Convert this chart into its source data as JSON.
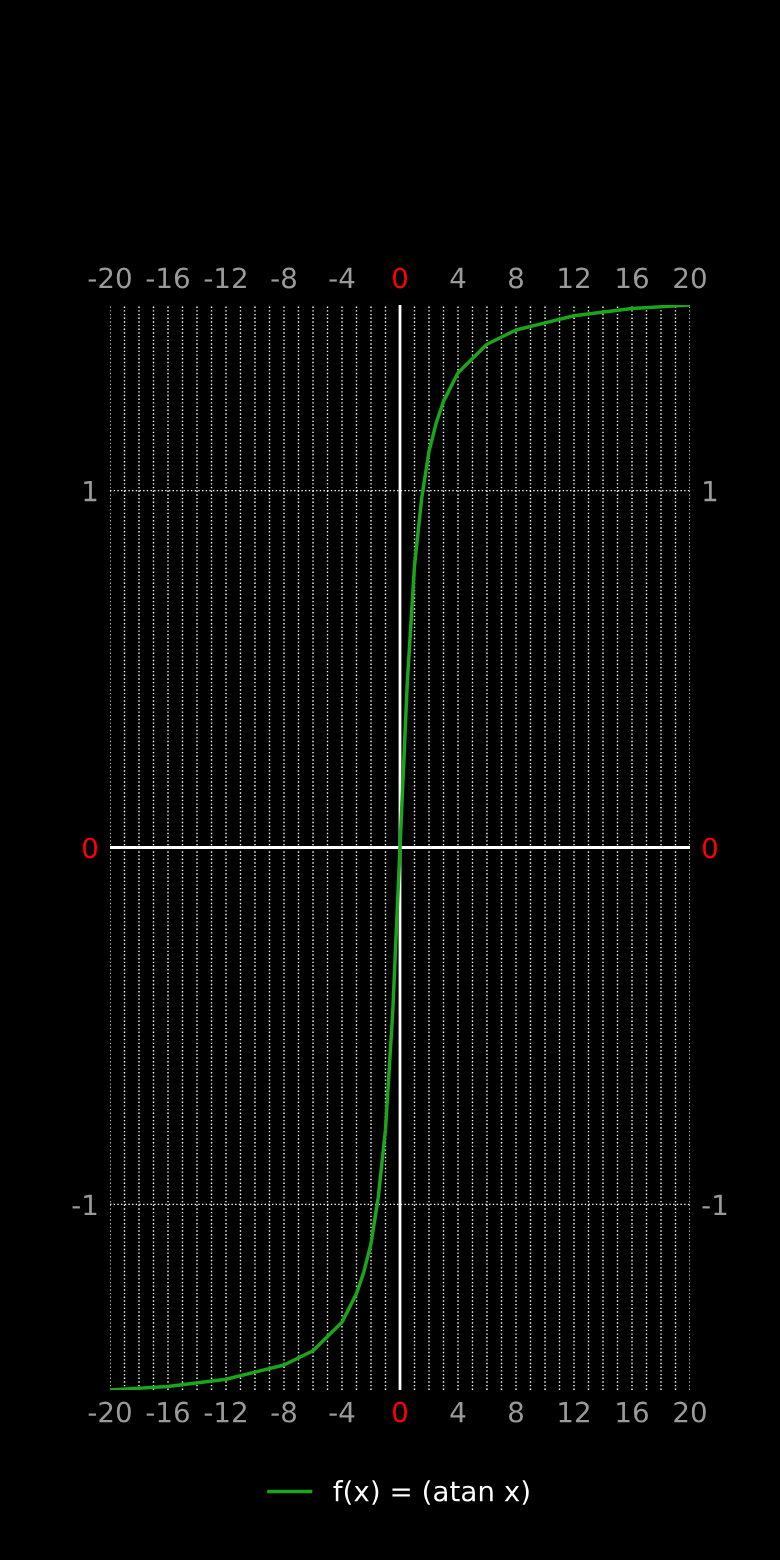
{
  "chart_data": {
    "type": "line",
    "xlim": [
      -20,
      20
    ],
    "ylim": [
      -1.52,
      1.52
    ],
    "x2lim": [
      -20,
      20
    ],
    "y2lim": [
      -1.52,
      1.52
    ],
    "xticks": [
      -20,
      {
        "value": -19,
        "label": null
      },
      {
        "value": -18,
        "label": null
      },
      {
        "value": -17,
        "label": null
      },
      -16,
      {
        "value": -15,
        "label": null
      },
      {
        "value": -14,
        "label": null
      },
      {
        "value": -13,
        "label": null
      },
      -12,
      {
        "value": -11,
        "label": null
      },
      {
        "value": -10,
        "label": null
      },
      {
        "value": -9,
        "label": null
      },
      -8,
      {
        "value": -7,
        "label": null
      },
      {
        "value": -6,
        "label": null
      },
      {
        "value": -5,
        "label": null
      },
      -4,
      {
        "value": -3,
        "label": null
      },
      {
        "value": -2,
        "label": null
      },
      {
        "value": -1,
        "label": null
      },
      0,
      {
        "value": 1,
        "label": null
      },
      {
        "value": 2,
        "label": null
      },
      {
        "value": 3,
        "label": null
      },
      4,
      {
        "value": 5,
        "label": null
      },
      {
        "value": 6,
        "label": null
      },
      {
        "value": 7,
        "label": null
      },
      8,
      {
        "value": 9,
        "label": null
      },
      {
        "value": 10,
        "label": null
      },
      {
        "value": 11,
        "label": null
      },
      12,
      {
        "value": 13,
        "label": null
      },
      {
        "value": 14,
        "label": null
      },
      {
        "value": 15,
        "label": null
      },
      16,
      {
        "value": 17,
        "label": null
      },
      {
        "value": 18,
        "label": null
      },
      {
        "value": 19,
        "label": null
      },
      20
    ],
    "x2ticks": [
      -20,
      -16,
      -12,
      -8,
      -4,
      0,
      4,
      8,
      12,
      16,
      20
    ],
    "yticks": [
      -1,
      0,
      1
    ],
    "y2ticks": [
      -1,
      0,
      1
    ],
    "grid": true,
    "legend": "bottom",
    "series": [
      {
        "name": "f(x) = (atan x)",
        "color": "#1aa51a",
        "x": [
          -20,
          -16,
          -12,
          -10,
          -8,
          -6,
          -5,
          -4,
          -3,
          -2.5,
          -2,
          -1.5,
          -1,
          -0.5,
          0,
          0.5,
          1,
          1.5,
          2,
          2.5,
          3,
          4,
          5,
          6,
          8,
          10,
          12,
          16,
          20
        ],
        "values": [
          -1.52,
          -1.51,
          -1.49,
          -1.47,
          -1.45,
          -1.41,
          -1.37,
          -1.33,
          -1.25,
          -1.19,
          -1.11,
          -0.98,
          -0.79,
          -0.46,
          0,
          0.46,
          0.79,
          0.98,
          1.11,
          1.19,
          1.25,
          1.33,
          1.37,
          1.41,
          1.45,
          1.47,
          1.49,
          1.51,
          1.52
        ]
      }
    ]
  }
}
